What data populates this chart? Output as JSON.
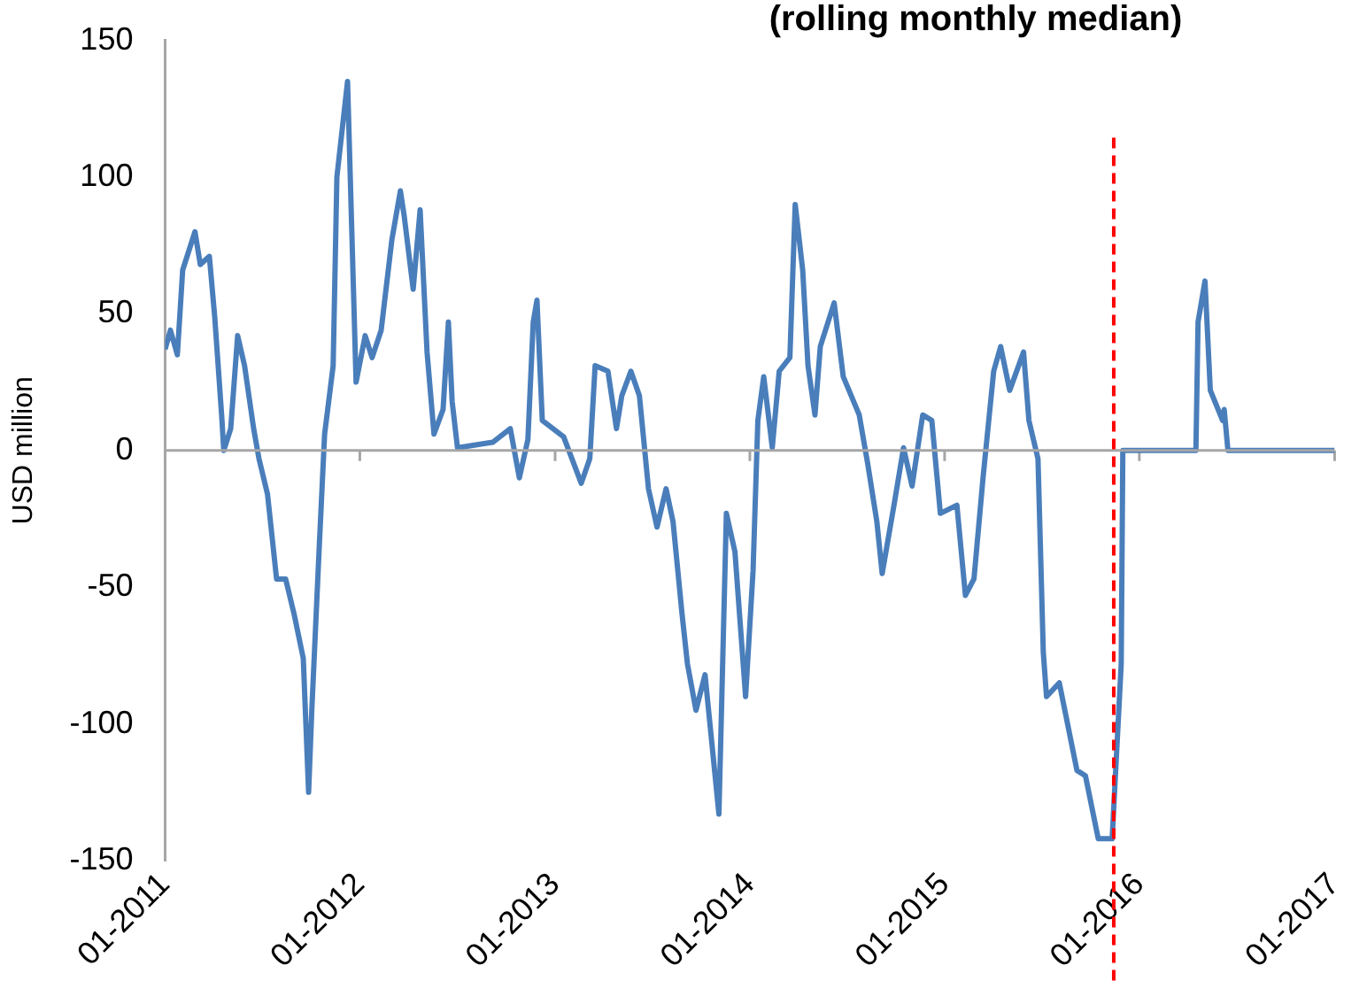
{
  "chart_data": {
    "type": "line",
    "title": "(rolling monthly median)",
    "ylabel": "USD million",
    "x": [
      "2011-01-01",
      "2011-01-11",
      "2011-01-24",
      "2011-02-03",
      "2011-02-26",
      "2011-03-08",
      "2011-03-25",
      "2011-04-04",
      "2011-04-17",
      "2011-04-21",
      "2011-05-04",
      "2011-05-17",
      "2011-05-30",
      "2011-06-16",
      "2011-06-26",
      "2011-07-12",
      "2011-07-29",
      "2011-08-15",
      "2011-08-31",
      "2011-09-17",
      "2011-09-27",
      "2011-10-03",
      "2011-10-17",
      "2011-10-27",
      "2011-11-12",
      "2011-11-19",
      "2011-12-09",
      "2011-12-25",
      "2012-01-11",
      "2012-01-24",
      "2012-02-10",
      "2012-03-01",
      "2012-03-17",
      "2012-03-24",
      "2012-04-10",
      "2012-04-23",
      "2012-05-06",
      "2012-05-19",
      "2012-06-05",
      "2012-06-15",
      "2012-06-22",
      "2012-07-02",
      "2012-09-06",
      "2012-10-09",
      "2012-10-26",
      "2012-11-11",
      "2012-11-21",
      "2012-11-28",
      "2012-12-08",
      "2013-01-17",
      "2013-02-19",
      "2013-03-07",
      "2013-03-17",
      "2013-04-10",
      "2013-04-26",
      "2013-05-06",
      "2013-05-23",
      "2013-06-08",
      "2013-06-25",
      "2013-07-11",
      "2013-07-28",
      "2013-08-10",
      "2013-08-27",
      "2013-09-06",
      "2013-09-22",
      "2013-10-09",
      "2013-11-04",
      "2013-11-18",
      "2013-12-04",
      "2013-12-24",
      "2014-01-07",
      "2014-01-16",
      "2014-01-27",
      "2014-02-12",
      "2014-02-25",
      "2014-03-17",
      "2014-03-27",
      "2014-04-10",
      "2014-04-20",
      "2014-05-03",
      "2014-05-13",
      "2014-06-08",
      "2014-06-25",
      "2014-07-25",
      "2014-08-10",
      "2014-08-27",
      "2014-09-06",
      "2014-09-29",
      "2014-10-16",
      "2014-11-01",
      "2014-11-21",
      "2014-12-08",
      "2014-12-24",
      "2015-01-24",
      "2015-02-09",
      "2015-02-25",
      "2015-03-14",
      "2015-04-03",
      "2015-04-16",
      "2015-05-03",
      "2015-05-29",
      "2015-06-08",
      "2015-06-25",
      "2015-07-05",
      "2015-07-11",
      "2015-08-04",
      "2015-09-06",
      "2015-09-22",
      "2015-10-16",
      "2015-11-11",
      "2015-11-28",
      "2015-12-01",
      "2016-04-16",
      "2016-04-20",
      "2016-05-03",
      "2016-05-13",
      "2016-06-05",
      "2016-06-08",
      "2016-06-15",
      "2017-01-01"
    ],
    "series": [
      {
        "color": "#4a7ebb",
        "values": [
          37,
          44,
          35,
          66,
          80,
          68,
          71,
          49,
          13,
          0,
          8,
          42,
          31,
          8,
          -3,
          -16,
          -47,
          -47,
          -60,
          -76,
          -125,
          -95,
          -35,
          6,
          31,
          100,
          135,
          25,
          42,
          34,
          44,
          77,
          95,
          86,
          59,
          88,
          36,
          6,
          15,
          47,
          18,
          1,
          3,
          8,
          -10,
          4,
          47,
          55,
          11,
          5,
          -12,
          -3,
          31,
          29,
          8,
          20,
          29,
          20,
          -14,
          -28,
          -14,
          -26,
          -60,
          -78,
          -95,
          -82,
          -133,
          -23,
          -37,
          -90,
          -44,
          11,
          27,
          1,
          29,
          34,
          90,
          66,
          31,
          13,
          38,
          54,
          27,
          13,
          -5,
          -26,
          -45,
          -19,
          1,
          -13,
          13,
          11,
          -23,
          -20,
          -53,
          -47,
          -10,
          29,
          38,
          22,
          36,
          11,
          -3,
          -74,
          -90,
          -85,
          -117,
          -119,
          -142,
          -142,
          -78,
          0,
          0,
          47,
          62,
          22,
          11,
          15,
          0,
          0
        ]
      }
    ],
    "xlim": [
      "2011-01-01",
      "2017-01-01"
    ],
    "xticks": [
      {
        "value": "2011-01-01",
        "label": "01-2011"
      },
      {
        "value": "2012-01-01",
        "label": "01-2012"
      },
      {
        "value": "2013-01-01",
        "label": "01-2013"
      },
      {
        "value": "2014-01-01",
        "label": "01-2014"
      },
      {
        "value": "2015-01-01",
        "label": "01-2015"
      },
      {
        "value": "2016-01-01",
        "label": "01-2016"
      },
      {
        "value": "2017-01-01",
        "label": "01-2017"
      }
    ],
    "ylim": [
      -150,
      150
    ],
    "yticks": [
      -150,
      -100,
      -50,
      0,
      50,
      100,
      150
    ],
    "ref_lines": [
      {
        "axis": "y",
        "value": 0,
        "color": "#a6a6a6",
        "line_style": "solid"
      },
      {
        "axis": "x",
        "value": "2015-11-14",
        "color": "#ff0000",
        "line_style": "dashed"
      }
    ],
    "grid": false,
    "legend": false,
    "marker": "none",
    "line_style": "solid"
  }
}
